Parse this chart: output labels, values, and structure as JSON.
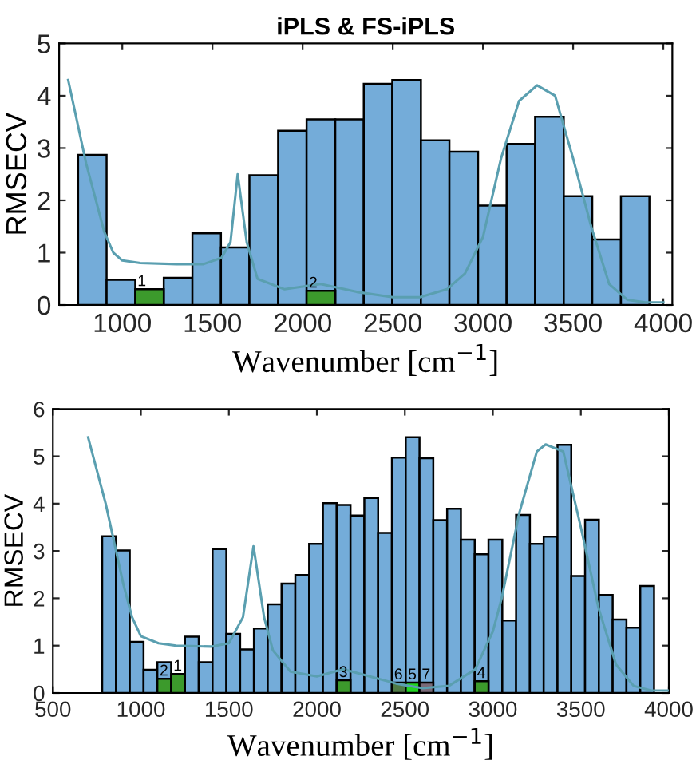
{
  "chart_data": [
    {
      "type": "histogram",
      "title": "iPLS & FS-iPLS",
      "ylabel": "RMSECV",
      "xlabel": "Wavenumber [cm$^{−1}$]",
      "bins": [
        755,
        913,
        1072,
        1230,
        1389,
        1547,
        1705,
        1864,
        2022,
        2181,
        2339,
        2497,
        2656,
        2814,
        2973,
        3131,
        3289,
        3448,
        3606,
        3765,
        3923
      ],
      "xlim": [
        650,
        4050
      ],
      "xticks": [
        1000,
        1500,
        2000,
        2500,
        3000,
        3500,
        4000
      ],
      "ylim": [
        0,
        5
      ],
      "yticks": [
        0,
        1,
        2,
        3,
        4,
        5
      ],
      "grid": false,
      "series": [
        {
          "color": "#74acd9",
          "values": [
            2.87,
            0.48,
            null,
            0.52,
            1.37,
            1.1,
            2.48,
            3.33,
            3.55,
            3.55,
            4.23,
            4.3,
            3.15,
            2.93,
            1.9,
            3.08,
            3.6,
            2.08,
            1.25,
            2.08
          ]
        },
        {
          "colors": [
            null,
            null,
            "#3c9a2c",
            null,
            null,
            null,
            null,
            null,
            "#3c9a2c",
            null,
            null,
            null,
            null,
            null,
            null,
            null,
            null,
            null,
            null,
            null
          ],
          "values": [
            null,
            null,
            0.3,
            null,
            null,
            null,
            null,
            null,
            0.27,
            null,
            null,
            null,
            null,
            null,
            null,
            null,
            null,
            null,
            null,
            null
          ]
        },
        {
          "type": "line",
          "color": "#5a9fb0",
          "x": [
            700,
            800,
            900,
            950,
            1000,
            1100,
            1300,
            1450,
            1550,
            1600,
            1640,
            1690,
            1750,
            1900,
            2100,
            2300,
            2500,
            2650,
            2800,
            2900,
            3000,
            3100,
            3200,
            3300,
            3400,
            3500,
            3600,
            3700,
            3800,
            3900,
            4000
          ],
          "values": [
            4.3,
            2.7,
            1.4,
            1.0,
            0.85,
            0.8,
            0.78,
            0.78,
            0.9,
            1.2,
            2.5,
            1.2,
            0.5,
            0.3,
            0.4,
            0.25,
            0.15,
            0.15,
            0.3,
            0.6,
            1.3,
            2.8,
            3.9,
            4.2,
            4.0,
            2.8,
            1.5,
            0.4,
            0.1,
            0.05,
            0.05
          ]
        }
      ],
      "annotations": [
        {
          "text": "1",
          "x": 1072,
          "y": 0.3
        },
        {
          "text": "2",
          "x": 2022,
          "y": 0.27
        }
      ]
    },
    {
      "type": "histogram",
      "ylabel": "RMSECV",
      "xlabel": "Wavenumber [cm$^{−1}$]",
      "bins": [
        780.0,
        858.4,
        936.8,
        1015.2,
        1093.6,
        1172.0,
        1250.4,
        1328.8,
        1407.2,
        1485.6,
        1564.0,
        1642.4,
        1720.8,
        1799.2,
        1877.6,
        1956.0,
        2034.4,
        2112.8,
        2191.2,
        2269.6,
        2348.0,
        2426.4,
        2504.8,
        2583.2,
        2661.6,
        2740.0,
        2818.4,
        2896.8,
        2975.2,
        3053.6,
        3132.0,
        3210.4,
        3288.8,
        3367.2,
        3445.6,
        3524.0,
        3602.4,
        3680.8,
        3759.2,
        3837.6,
        3916.0
      ],
      "xlim": [
        500,
        4000
      ],
      "xticks": [
        500,
        1000,
        1500,
        2000,
        2500,
        3000,
        3500,
        4000
      ],
      "ylim": [
        0,
        6
      ],
      "yticks": [
        0,
        1,
        2,
        3,
        4,
        5,
        6
      ],
      "grid": false,
      "series": [
        {
          "color": "#74acd9",
          "values": [
            3.31,
            3.01,
            1.08,
            0.49,
            0.65,
            null,
            1.19,
            0.65,
            3.04,
            1.25,
            0.92,
            1.36,
            1.87,
            2.31,
            2.49,
            3.15,
            4.01,
            3.97,
            3.75,
            4.12,
            3.38,
            4.97,
            5.4,
            4.96,
            3.65,
            3.89,
            3.24,
            2.93,
            3.24,
            1.53,
            3.76,
            3.15,
            3.3,
            5.24,
            2.47,
            3.66,
            2.07,
            1.55,
            1.38,
            2.26
          ]
        },
        {
          "colors": [
            null,
            null,
            null,
            null,
            "#3c9a2c",
            "#3c9a2c",
            null,
            null,
            null,
            null,
            null,
            null,
            null,
            null,
            null,
            null,
            null,
            "#3c9a2c",
            null,
            null,
            null,
            "#4f7a45",
            "#22d422",
            "#7a6a78",
            null,
            null,
            null,
            "#3c9a2c",
            null,
            null,
            null,
            null,
            null,
            null,
            null,
            null,
            null,
            null,
            null,
            null
          ],
          "values": [
            null,
            null,
            null,
            null,
            0.3,
            0.4,
            null,
            null,
            null,
            null,
            null,
            null,
            null,
            null,
            null,
            null,
            null,
            0.27,
            null,
            null,
            null,
            0.22,
            0.22,
            0.22,
            null,
            null,
            null,
            0.25,
            null,
            null,
            null,
            null,
            null,
            null,
            null,
            null,
            null,
            null,
            null,
            null
          ]
        },
        {
          "type": "line",
          "color": "#5a9fb0",
          "x": [
            700,
            800,
            900,
            950,
            1000,
            1100,
            1200,
            1400,
            1500,
            1580,
            1640,
            1700,
            1750,
            1850,
            2000,
            2150,
            2300,
            2450,
            2600,
            2750,
            2900,
            3000,
            3050,
            3150,
            3250,
            3300,
            3400,
            3500,
            3600,
            3700,
            3800,
            3900,
            4000
          ],
          "values": [
            5.4,
            4.0,
            2.3,
            1.6,
            1.2,
            1.05,
            1.0,
            0.98,
            1.05,
            1.6,
            3.1,
            1.6,
            0.9,
            0.45,
            0.35,
            0.5,
            0.35,
            0.2,
            0.1,
            0.15,
            0.5,
            1.3,
            2.0,
            3.8,
            5.1,
            5.25,
            5.1,
            3.5,
            1.8,
            0.6,
            0.15,
            0.05,
            0.05
          ]
        }
      ],
      "annotations": [
        {
          "text": "2",
          "x": 1093.6,
          "y": 0.3
        },
        {
          "text": "1",
          "x": 1172.0,
          "y": 0.4
        },
        {
          "text": "3",
          "x": 2112.8,
          "y": 0.27
        },
        {
          "text": "6",
          "x": 2426.4,
          "y": 0.22
        },
        {
          "text": "5",
          "x": 2504.8,
          "y": 0.22
        },
        {
          "text": "7",
          "x": 2583.2,
          "y": 0.22
        },
        {
          "text": "4",
          "x": 2896.8,
          "y": 0.25
        }
      ]
    }
  ]
}
